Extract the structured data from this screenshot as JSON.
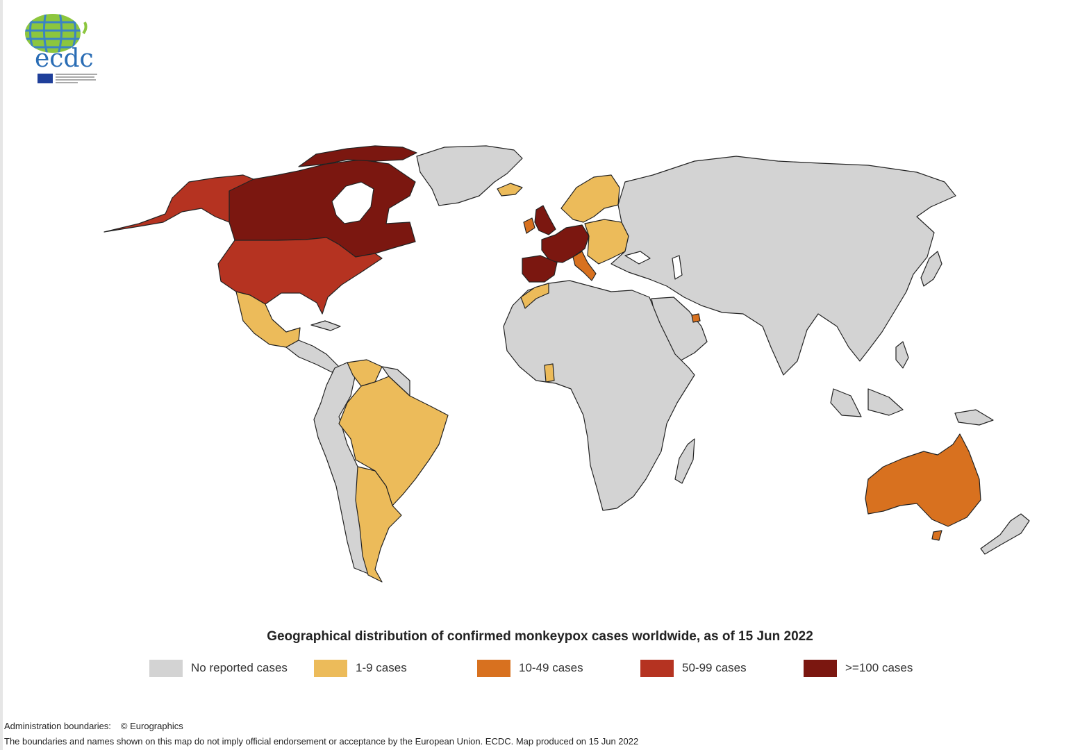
{
  "logo": {
    "text": "ecdc",
    "subtitle": "European Centre for Disease Prevention and Control"
  },
  "title": "Geographical distribution of confirmed monkeypox cases worldwide, as of 15 Jun 2022",
  "colors": {
    "none": "#d3d3d3",
    "c1_9": "#ecbb5a",
    "c10_49": "#d8711f",
    "c50_99": "#b53321",
    "c100": "#7b1710"
  },
  "legend": [
    {
      "label": "No reported cases",
      "color": "#d3d3d3"
    },
    {
      "label": "1-9 cases",
      "color": "#ecbb5a"
    },
    {
      "label": "10-49 cases",
      "color": "#d8711f"
    },
    {
      "label": "50-99 cases",
      "color": "#b53321"
    },
    {
      "label": ">=100 cases",
      "color": "#7b1710"
    }
  ],
  "footer": {
    "admin_label": "Administration boundaries:",
    "admin_credit": "© Eurographics",
    "disclaimer": "The boundaries and names shown on this map do not imply official endorsement or acceptance by the European Union. ECDC. Map produced on 15 Jun 2022"
  }
}
